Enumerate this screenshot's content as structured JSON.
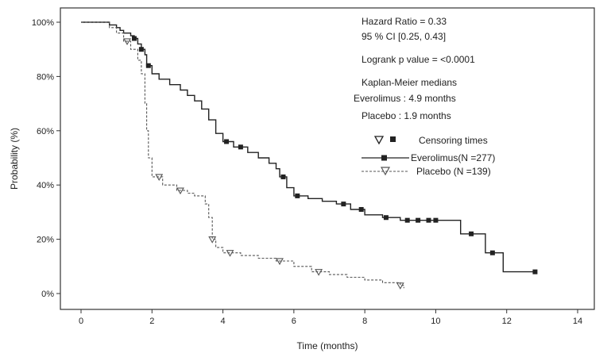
{
  "chart_data": {
    "type": "line",
    "subtype": "kaplan-meier step curve",
    "xlabel": "Time (months)",
    "ylabel": "Probability (%)",
    "xlim": [
      0,
      14
    ],
    "ylim": [
      0,
      100
    ],
    "x_ticks": [
      0,
      2,
      4,
      6,
      8,
      10,
      12,
      14
    ],
    "y_ticks": [
      0,
      20,
      40,
      60,
      80,
      100
    ],
    "y_tick_labels": [
      "0%",
      "20%",
      "40%",
      "60%",
      "80%",
      "100%"
    ],
    "grid": false,
    "annotations": [
      "Hazard Ratio = 0.33",
      "95 % CI [0.25, 0.43]",
      "Logrank p value = <0.0001",
      "Kaplan-Meier medians",
      "Everolimus : 4.9 months",
      "Placebo : 1.9 months"
    ],
    "legend": {
      "placement": "right",
      "header": "Censoring times",
      "entries": [
        "Everolimus(N =277)",
        "Placebo  (N =139)"
      ]
    },
    "series": [
      {
        "name": "Everolimus(N =277)",
        "style": "solid",
        "marker": "square",
        "color": "#222222",
        "points": [
          [
            0,
            100
          ],
          [
            0.6,
            100
          ],
          [
            0.8,
            99
          ],
          [
            1.0,
            98
          ],
          [
            1.1,
            97
          ],
          [
            1.2,
            96
          ],
          [
            1.4,
            95
          ],
          [
            1.5,
            94
          ],
          [
            1.6,
            92
          ],
          [
            1.7,
            90
          ],
          [
            1.8,
            88
          ],
          [
            1.85,
            84
          ],
          [
            2.0,
            81
          ],
          [
            2.2,
            79
          ],
          [
            2.5,
            77
          ],
          [
            2.8,
            75
          ],
          [
            3.0,
            73
          ],
          [
            3.2,
            71
          ],
          [
            3.4,
            68
          ],
          [
            3.6,
            64
          ],
          [
            3.8,
            59
          ],
          [
            4.0,
            56
          ],
          [
            4.3,
            54
          ],
          [
            4.7,
            52
          ],
          [
            5.0,
            50
          ],
          [
            5.3,
            48
          ],
          [
            5.5,
            46
          ],
          [
            5.6,
            43
          ],
          [
            5.8,
            39
          ],
          [
            6.0,
            36
          ],
          [
            6.4,
            35
          ],
          [
            6.8,
            34
          ],
          [
            7.2,
            33
          ],
          [
            7.6,
            31
          ],
          [
            8.0,
            29
          ],
          [
            8.5,
            28
          ],
          [
            9.0,
            27
          ],
          [
            9.5,
            27
          ],
          [
            10.0,
            27
          ],
          [
            10.6,
            27
          ],
          [
            10.7,
            22
          ],
          [
            11.3,
            22
          ],
          [
            11.4,
            15
          ],
          [
            11.8,
            15
          ],
          [
            11.9,
            8
          ],
          [
            12.8,
            8
          ]
        ],
        "censor_x": [
          1.5,
          1.7,
          1.9,
          4.1,
          4.5,
          5.7,
          6.1,
          7.4,
          7.9,
          8.6,
          9.2,
          9.5,
          9.8,
          10.0,
          11.0,
          11.6,
          12.8
        ]
      },
      {
        "name": "Placebo  (N =139)",
        "style": "dashed",
        "marker": "triangle-down",
        "color": "#555555",
        "points": [
          [
            0,
            100
          ],
          [
            0.5,
            100
          ],
          [
            0.8,
            98
          ],
          [
            1.0,
            96
          ],
          [
            1.2,
            93
          ],
          [
            1.4,
            90
          ],
          [
            1.6,
            86
          ],
          [
            1.7,
            81
          ],
          [
            1.8,
            70
          ],
          [
            1.85,
            60
          ],
          [
            1.9,
            50
          ],
          [
            2.0,
            43
          ],
          [
            2.3,
            40
          ],
          [
            2.7,
            38
          ],
          [
            3.0,
            37
          ],
          [
            3.2,
            36
          ],
          [
            3.5,
            33
          ],
          [
            3.6,
            28
          ],
          [
            3.7,
            20
          ],
          [
            3.8,
            17
          ],
          [
            4.0,
            15
          ],
          [
            4.5,
            14
          ],
          [
            5.0,
            13
          ],
          [
            5.5,
            12
          ],
          [
            6.0,
            10
          ],
          [
            6.5,
            8
          ],
          [
            7.0,
            7
          ],
          [
            7.5,
            6
          ],
          [
            8.0,
            5
          ],
          [
            8.5,
            4
          ],
          [
            9.0,
            3
          ],
          [
            9.1,
            2
          ]
        ],
        "censor_x": [
          1.3,
          2.2,
          2.8,
          3.7,
          4.2,
          5.6,
          6.7,
          9.0
        ]
      }
    ]
  }
}
